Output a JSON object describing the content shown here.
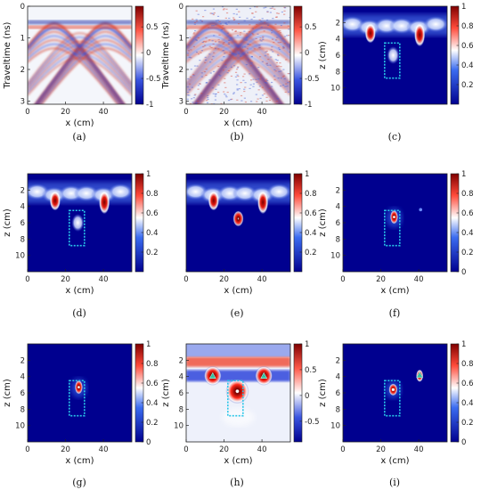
{
  "chart_data": [
    {
      "type": "heatmap",
      "id": "a",
      "caption": "(a)",
      "xlabel": "x (cm)",
      "ylabel": "Traveltime (ns)",
      "xticks": [
        "0",
        "20",
        "40"
      ],
      "yticks": [
        "0",
        "1",
        "2",
        "3"
      ],
      "cbar_ticks": [
        "0.5",
        "0",
        "-0.5",
        "-1"
      ],
      "colormap": "diverging",
      "xlim": [
        0,
        55
      ],
      "ylim": [
        0,
        3.1
      ],
      "cbar_lim": [
        -1,
        0.9
      ]
    },
    {
      "type": "heatmap",
      "id": "b",
      "caption": "(b)",
      "xlabel": "x (cm)",
      "ylabel": "Traveltime (ns)",
      "xticks": [
        "0",
        "20",
        "40"
      ],
      "yticks": [
        "0",
        "1",
        "2",
        "3"
      ],
      "cbar_ticks": [
        "0.5",
        "0",
        "-0.5",
        "-1"
      ],
      "colormap": "diverging",
      "xlim": [
        0,
        55
      ],
      "ylim": [
        0,
        3.1
      ],
      "cbar_lim": [
        -1,
        0.9
      ]
    },
    {
      "type": "heatmap",
      "id": "c",
      "caption": "(c)",
      "xlabel": "",
      "ylabel": "z (cm)",
      "xticks": [],
      "yticks": [
        "2",
        "4",
        "6",
        "8",
        "10"
      ],
      "cbar_ticks": [
        "1",
        "0.8",
        "0.6",
        "0.4",
        "0.2"
      ],
      "colormap": "sequential",
      "xlim": [
        0,
        55
      ],
      "ylim": [
        0,
        12
      ],
      "cbar_lim": [
        0,
        1
      ],
      "target_box": {
        "x": [
          22,
          30
        ],
        "z": [
          4.5,
          8.8
        ]
      }
    },
    {
      "type": "heatmap",
      "id": "d",
      "caption": "(d)",
      "xlabel": "x (cm)",
      "ylabel": "z (cm)",
      "xticks": [
        "0",
        "20",
        "40"
      ],
      "yticks": [
        "2",
        "4",
        "6",
        "8",
        "10"
      ],
      "cbar_ticks": [
        "1",
        "0.8",
        "0.6",
        "0.4",
        "0.2"
      ],
      "colormap": "sequential",
      "xlim": [
        0,
        55
      ],
      "ylim": [
        0,
        12
      ],
      "cbar_lim": [
        0,
        1
      ],
      "target_box": {
        "x": [
          22,
          30
        ],
        "z": [
          4.5,
          8.8
        ]
      }
    },
    {
      "type": "heatmap",
      "id": "e",
      "caption": "(e)",
      "xlabel": "x (cm)",
      "ylabel": "",
      "xticks": [
        "0",
        "20",
        "40"
      ],
      "yticks": [],
      "cbar_ticks": [
        "1",
        "0.8",
        "0.6",
        "0.4",
        "0.2"
      ],
      "colormap": "sequential",
      "xlim": [
        0,
        55
      ],
      "ylim": [
        0,
        12
      ],
      "cbar_lim": [
        0,
        1
      ]
    },
    {
      "type": "heatmap",
      "id": "f",
      "caption": "(f)",
      "xlabel": "x (cm)",
      "ylabel": "z (cm)",
      "xticks": [
        "0",
        "20",
        "40"
      ],
      "yticks": [
        "2",
        "4",
        "6",
        "8",
        "10"
      ],
      "cbar_ticks": [
        "1",
        "0.8",
        "0.6",
        "0.4",
        "0.2",
        "0"
      ],
      "colormap": "sequential",
      "xlim": [
        0,
        55
      ],
      "ylim": [
        0,
        12
      ],
      "cbar_lim": [
        0,
        1
      ],
      "target_box": {
        "x": [
          22,
          30
        ],
        "z": [
          4.5,
          8.8
        ]
      }
    },
    {
      "type": "heatmap",
      "id": "g",
      "caption": "(g)",
      "xlabel": "x (cm)",
      "ylabel": "z (cm)",
      "xticks": [
        "0",
        "20",
        "40"
      ],
      "yticks": [
        "2",
        "4",
        "6",
        "8",
        "10"
      ],
      "cbar_ticks": [
        "1",
        "0.8",
        "0.6",
        "0.4",
        "0.2",
        "0"
      ],
      "colormap": "sequential",
      "xlim": [
        0,
        55
      ],
      "ylim": [
        0,
        12
      ],
      "cbar_lim": [
        0,
        1
      ],
      "target_box": {
        "x": [
          22,
          30
        ],
        "z": [
          4.5,
          8.8
        ]
      }
    },
    {
      "type": "heatmap",
      "id": "h",
      "caption": "(h)",
      "xlabel": "x (cm)",
      "ylabel": "z (cm)",
      "xticks": [
        "0",
        "20",
        "40"
      ],
      "yticks": [
        "2",
        "4",
        "6",
        "8",
        "10"
      ],
      "cbar_ticks": [
        "1",
        "0.5",
        "0",
        "-0.5"
      ],
      "colormap": "diverging",
      "xlim": [
        0,
        55
      ],
      "ylim": [
        0,
        12
      ],
      "cbar_lim": [
        -0.9,
        1
      ],
      "target_box": {
        "x": [
          22,
          30
        ],
        "z": [
          4.5,
          8.8
        ]
      }
    },
    {
      "type": "heatmap",
      "id": "i",
      "caption": "(i)",
      "xlabel": "x (cm)",
      "ylabel": "z (cm)",
      "xticks": [
        "0",
        "20",
        "40"
      ],
      "yticks": [
        "2",
        "4",
        "6",
        "8",
        "10"
      ],
      "cbar_ticks": [
        "1",
        "0.8",
        "0.6",
        "0.4",
        "0.2",
        "0"
      ],
      "colormap": "sequential",
      "xlim": [
        0,
        55
      ],
      "ylim": [
        0,
        12
      ],
      "cbar_lim": [
        0,
        1
      ],
      "target_box": {
        "x": [
          22,
          30
        ],
        "z": [
          4.5,
          8.8
        ]
      }
    }
  ]
}
